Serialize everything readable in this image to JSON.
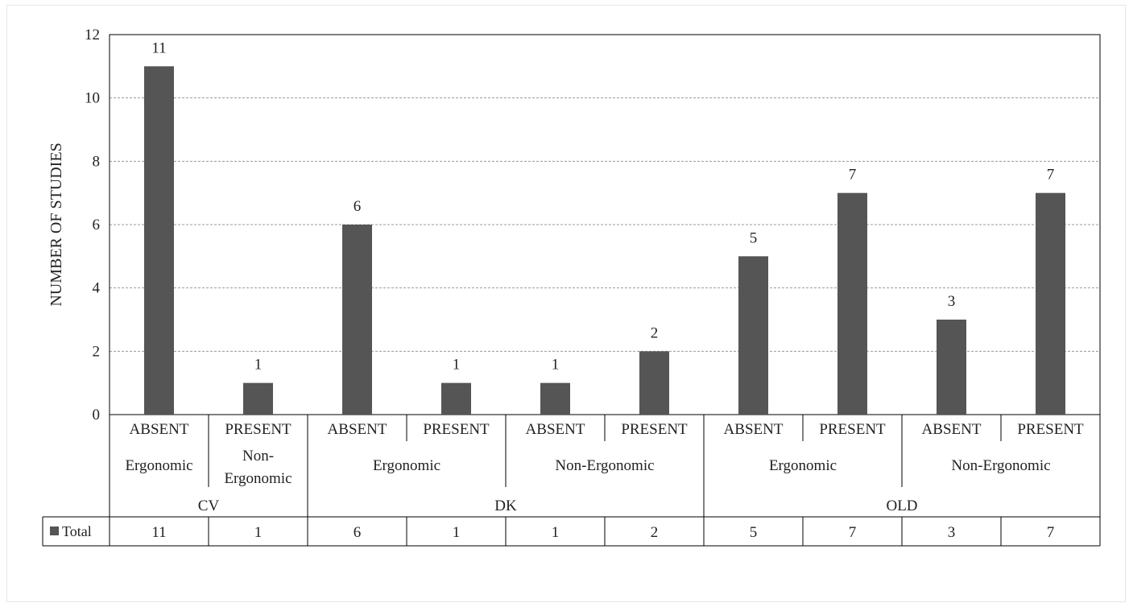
{
  "chart_data": {
    "type": "bar",
    "ylabel": "NUMBER  OF STUDIES",
    "ylim": [
      0,
      12
    ],
    "yticks": [
      0,
      2,
      4,
      6,
      8,
      10,
      12
    ],
    "grid": true,
    "bar_color": "#555555",
    "categories": [
      {
        "level1": "ABSENT",
        "level2": "Ergonomic",
        "level3": "CV",
        "value": 11
      },
      {
        "level1": "PRESENT",
        "level2": "Non-Ergonomic",
        "level3": "CV",
        "value": 1
      },
      {
        "level1": "ABSENT",
        "level2": "Ergonomic",
        "level3": "DK",
        "value": 6
      },
      {
        "level1": "PRESENT",
        "level2": "Ergonomic",
        "level3": "DK",
        "value": 1
      },
      {
        "level1": "ABSENT",
        "level2": "Non-Ergonomic",
        "level3": "DK",
        "value": 1
      },
      {
        "level1": "PRESENT",
        "level2": "Non-Ergonomic",
        "level3": "DK",
        "value": 2
      },
      {
        "level1": "ABSENT",
        "level2": "Ergonomic",
        "level3": "OLD",
        "value": 5
      },
      {
        "level1": "PRESENT",
        "level2": "Ergonomic",
        "level3": "OLD",
        "value": 7
      },
      {
        "level1": "ABSENT",
        "level2": "Non-Ergonomic",
        "level3": "OLD",
        "value": 3
      },
      {
        "level1": "PRESENT",
        "level2": "Non-Ergonomic",
        "level3": "OLD",
        "value": 7
      }
    ],
    "level2_groups": [
      {
        "label_lines": [
          "Ergonomic"
        ],
        "start": 0,
        "end": 0
      },
      {
        "label_lines": [
          "Non-",
          "Ergonomic"
        ],
        "start": 1,
        "end": 1
      },
      {
        "label_lines": [
          "Ergonomic"
        ],
        "start": 2,
        "end": 3
      },
      {
        "label_lines": [
          "Non-Ergonomic"
        ],
        "start": 4,
        "end": 5
      },
      {
        "label_lines": [
          "Ergonomic"
        ],
        "start": 6,
        "end": 7
      },
      {
        "label_lines": [
          "Non-Ergonomic"
        ],
        "start": 8,
        "end": 9
      }
    ],
    "level3_groups": [
      {
        "label": "CV",
        "start": 0,
        "end": 1
      },
      {
        "label": "DK",
        "start": 2,
        "end": 5
      },
      {
        "label": "OLD",
        "start": 6,
        "end": 9
      }
    ],
    "table": {
      "legend_label": "Total",
      "values": [
        "11",
        "1",
        "6",
        "1",
        "1",
        "2",
        "5",
        "7",
        "3",
        "7"
      ]
    }
  }
}
